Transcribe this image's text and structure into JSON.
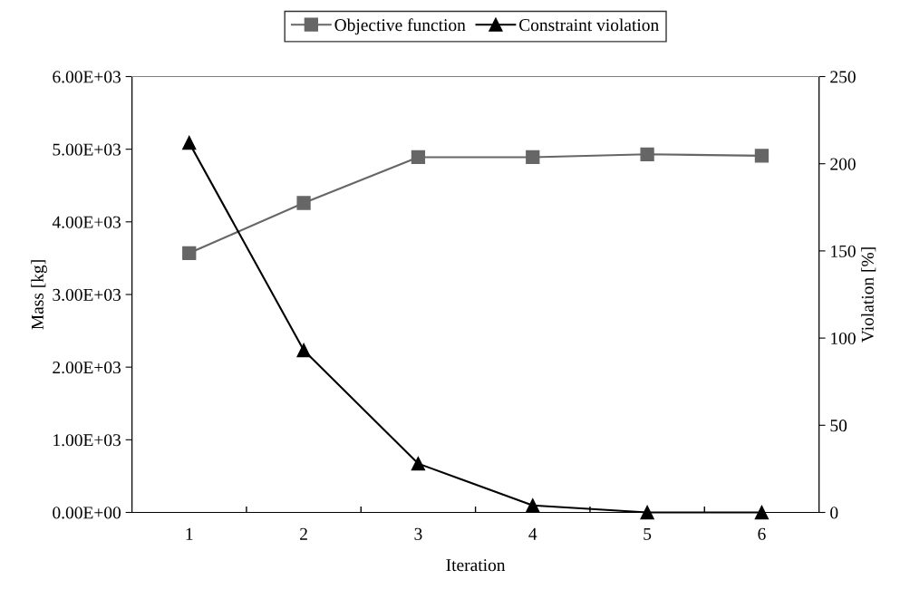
{
  "chart_data": {
    "type": "line",
    "xlabel": "Iteration",
    "ylabel": "Mass [kg]",
    "y2label": "Violation [%]",
    "categories": [
      "1",
      "2",
      "3",
      "4",
      "5",
      "6"
    ],
    "series": [
      {
        "name": "Objective function",
        "color": "#666666",
        "marker": "square",
        "values": [
          3570,
          4260,
          4890,
          4890,
          4930,
          4910
        ]
      },
      {
        "name": "Constraint violation",
        "color": "#000000",
        "marker": "triangle",
        "axis": "y2",
        "values": [
          212,
          93,
          28,
          4,
          0,
          0
        ]
      }
    ],
    "ylim": [
      0,
      6000
    ],
    "yticks": [
      {
        "value": 0,
        "label": "0.00E+00"
      },
      {
        "value": 1000,
        "label": "1.00E+03"
      },
      {
        "value": 2000,
        "label": "2.00E+03"
      },
      {
        "value": 3000,
        "label": "3.00E+03"
      },
      {
        "value": 4000,
        "label": "4.00E+03"
      },
      {
        "value": 5000,
        "label": "5.00E+03"
      },
      {
        "value": 6000,
        "label": "6.00E+03"
      }
    ],
    "y2lim": [
      0,
      250
    ],
    "y2ticks": [
      0,
      50,
      100,
      150,
      200,
      250
    ],
    "grid": false,
    "legend": "top",
    "line_style": "solid"
  }
}
